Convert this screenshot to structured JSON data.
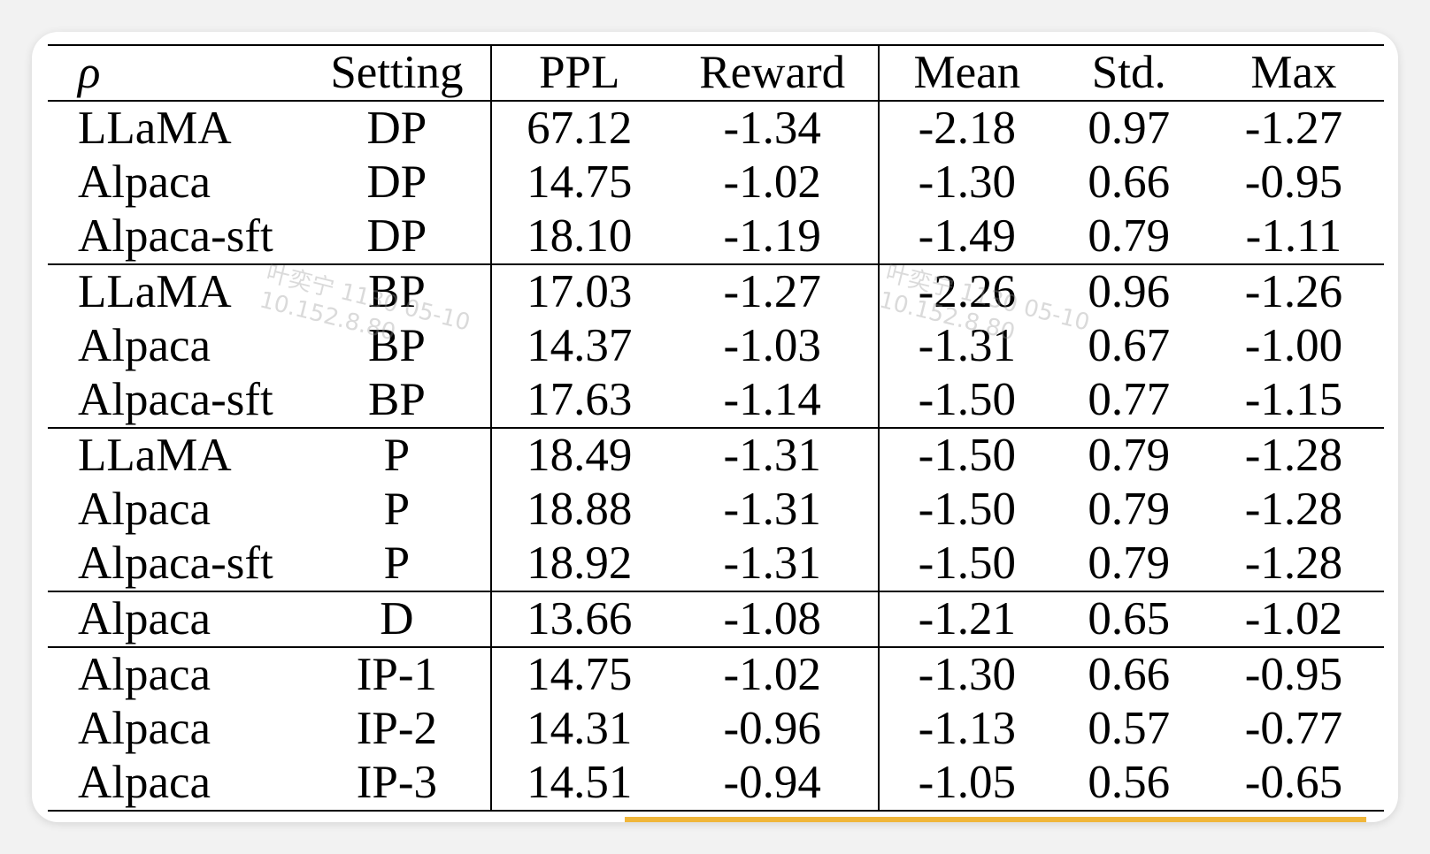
{
  "table": {
    "headers": {
      "rho": "ρ",
      "setting": "Setting",
      "ppl": "PPL",
      "reward": "Reward",
      "mean": "Mean",
      "std": "Std.",
      "max": "Max"
    },
    "rows": [
      {
        "model": "LLaMA",
        "setting": "DP",
        "ppl": "67.12",
        "reward": "-1.34",
        "mean": "-2.18",
        "std": "0.97",
        "max": "-1.27"
      },
      {
        "model": "Alpaca",
        "setting": "DP",
        "ppl": "14.75",
        "reward": "-1.02",
        "mean": "-1.30",
        "std": "0.66",
        "max": "-0.95"
      },
      {
        "model": "Alpaca-sft",
        "setting": "DP",
        "ppl": "18.10",
        "reward": "-1.19",
        "mean": "-1.49",
        "std": "0.79",
        "max": "-1.11"
      },
      {
        "model": "LLaMA",
        "setting": "BP",
        "ppl": "17.03",
        "reward": "-1.27",
        "mean": "-2.26",
        "std": "0.96",
        "max": "-1.26"
      },
      {
        "model": "Alpaca",
        "setting": "BP",
        "ppl": "14.37",
        "reward": "-1.03",
        "mean": "-1.31",
        "std": "0.67",
        "max": "-1.00"
      },
      {
        "model": "Alpaca-sft",
        "setting": "BP",
        "ppl": "17.63",
        "reward": "-1.14",
        "mean": "-1.50",
        "std": "0.77",
        "max": "-1.15"
      },
      {
        "model": "LLaMA",
        "setting": "P",
        "ppl": "18.49",
        "reward": "-1.31",
        "mean": "-1.50",
        "std": "0.79",
        "max": "-1.28"
      },
      {
        "model": "Alpaca",
        "setting": "P",
        "ppl": "18.88",
        "reward": "-1.31",
        "mean": "-1.50",
        "std": "0.79",
        "max": "-1.28"
      },
      {
        "model": "Alpaca-sft",
        "setting": "P",
        "ppl": "18.92",
        "reward": "-1.31",
        "mean": "-1.50",
        "std": "0.79",
        "max": "-1.28"
      },
      {
        "model": "Alpaca",
        "setting": "D",
        "ppl": "13.66",
        "reward": "-1.08",
        "mean": "-1.21",
        "std": "0.65",
        "max": "-1.02"
      },
      {
        "model": "Alpaca",
        "setting": "IP-1",
        "ppl": "14.75",
        "reward": "-1.02",
        "mean": "-1.30",
        "std": "0.66",
        "max": "-0.95"
      },
      {
        "model": "Alpaca",
        "setting": "IP-2",
        "ppl": "14.31",
        "reward": "-0.96",
        "mean": "-1.13",
        "std": "0.57",
        "max": "-0.77"
      },
      {
        "model": "Alpaca",
        "setting": "IP-3",
        "ppl": "14.51",
        "reward": "-0.94",
        "mean": "-1.05",
        "std": "0.56",
        "max": "-0.65"
      }
    ]
  },
  "watermark": {
    "line1": "叶奕宁 1130 05-10",
    "line2": "10.152.8.80"
  },
  "colors": {
    "accent": "#f0b63a",
    "text": "#000000",
    "watermark": "#969696"
  }
}
